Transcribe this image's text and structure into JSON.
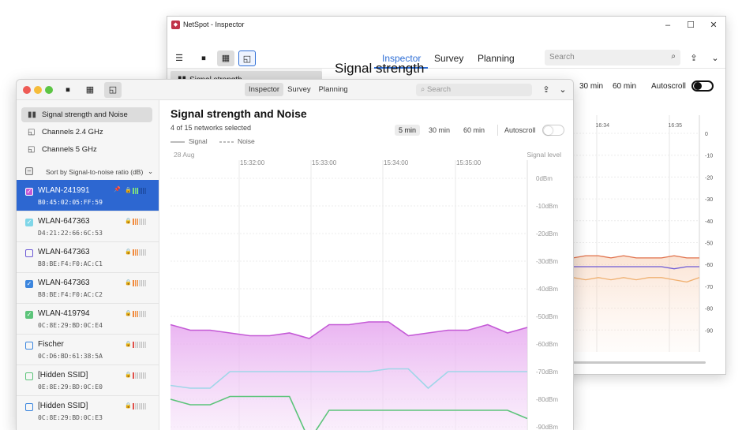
{
  "back_window": {
    "title": "NetSpot - Inspector",
    "window_controls": [
      "–",
      "☐",
      "✕"
    ],
    "tabs": [
      {
        "label": "Inspector",
        "active": true
      },
      {
        "label": "Survey",
        "active": false
      },
      {
        "label": "Planning",
        "active": false
      }
    ],
    "search_placeholder": "Search",
    "sidebar_item": "Signal strength",
    "heading": "Signal strength",
    "time_options": [
      "30 min",
      "60 min"
    ],
    "autoscroll_label": "Autoscroll",
    "autoscroll_on": false,
    "time_ticks": [
      "16:34",
      "16:35"
    ],
    "y_ticks": [
      "0",
      "-10",
      "-20",
      "-30",
      "-40",
      "-50",
      "-60",
      "-70",
      "-80",
      "-90"
    ]
  },
  "front_window": {
    "toolbar_tabs": [
      {
        "label": "Inspector",
        "active": true
      },
      {
        "label": "Survey",
        "active": false
      },
      {
        "label": "Planning",
        "active": false
      }
    ],
    "search_placeholder": "Search",
    "nav": [
      {
        "label": "Signal strength and Noise",
        "icon": "bar-chart-icon",
        "selected": true
      },
      {
        "label": "Channels 2.4 GHz",
        "icon": "channel-icon",
        "selected": false
      },
      {
        "label": "Channels 5 GHz",
        "icon": "channel-icon",
        "selected": false
      }
    ],
    "sort_label": "Sort by Signal-to-noise ratio (dB)",
    "networks": [
      {
        "ssid": "WLAN-241991",
        "mac": "B0:45:02:05:FF:59",
        "checked": true,
        "color": "#c45ad6",
        "active": true,
        "pinned": true
      },
      {
        "ssid": "WLAN-647363",
        "mac": "D4:21:22:66:6C:53",
        "checked": true,
        "color": "#7fd6e8",
        "active": false,
        "pinned": false
      },
      {
        "ssid": "WLAN-647363",
        "mac": "B8:BE:F4:F0:AC:C1",
        "checked": false,
        "color": "#6d5ad6",
        "active": false,
        "pinned": false
      },
      {
        "ssid": "WLAN-647363",
        "mac": "B8:BE:F4:F0:AC:C2",
        "checked": true,
        "color": "#3c86de",
        "active": false,
        "pinned": false
      },
      {
        "ssid": "WLAN-419794",
        "mac": "0C:8E:29:BD:0C:E4",
        "checked": true,
        "color": "#5cc47a",
        "active": false,
        "pinned": false
      },
      {
        "ssid": "Fischer",
        "mac": "0C:D6:BD:61:38:5A",
        "checked": false,
        "color": "#3c86de",
        "active": false,
        "pinned": false
      },
      {
        "ssid": "[Hidden SSID]",
        "mac": "0E:8E:29:BD:0C:E0",
        "checked": false,
        "color": "#5cc47a",
        "active": false,
        "pinned": false
      },
      {
        "ssid": "[Hidden SSID]",
        "mac": "0C:8E:29:BD:0C:E3",
        "checked": false,
        "color": "#3c86de",
        "active": false,
        "pinned": false
      }
    ],
    "main": {
      "title": "Signal strength and Noise",
      "subtitle": "4 of 15 networks selected",
      "legend_signal": "Signal",
      "legend_noise": "Noise",
      "time_options": [
        {
          "label": "5 min",
          "active": true
        },
        {
          "label": "30 min",
          "active": false
        },
        {
          "label": "60 min",
          "active": false
        }
      ],
      "autoscroll_label": "Autoscroll",
      "autoscroll_on": false
    }
  },
  "chart_data": {
    "type": "area",
    "date_label": "28 Aug",
    "x_ticks": [
      "15:32:00",
      "15:33:00",
      "15:34:00",
      "15:35:00"
    ],
    "ylabel": "Signal level",
    "y_ticks": [
      "0dBm",
      "-10dBm",
      "-20dBm",
      "-30dBm",
      "-40dBm",
      "-50dBm",
      "-60dBm",
      "-70dBm",
      "-80dBm",
      "-90dBm"
    ],
    "ylim": [
      -90,
      0
    ],
    "series": [
      {
        "color": "#c45ad6",
        "fill": true,
        "values": [
          -53,
          -55,
          -55,
          -56,
          -57,
          -57,
          -56,
          -58,
          -53,
          -53,
          -52,
          -52,
          -57,
          -56,
          -55,
          -55,
          -53,
          -56,
          -54
        ]
      },
      {
        "color": "#9fd6e8",
        "fill": false,
        "values": [
          -75,
          -76,
          -76,
          -70,
          -70,
          -70,
          -70,
          -70,
          -70,
          -70,
          -70,
          -69,
          -69,
          -76,
          -70,
          -70,
          -70,
          -70,
          -70
        ]
      },
      {
        "color": "#5cc47a",
        "fill": false,
        "values": [
          -80,
          -82,
          -82,
          -79,
          -79,
          -79,
          -79,
          -95,
          -84,
          -84,
          -84,
          -84,
          -84,
          -84,
          -84,
          -84,
          -84,
          -84,
          -87
        ]
      }
    ]
  },
  "back_chart_data": {
    "type": "line",
    "series": [
      {
        "color": "#e0704a",
        "values": [
          -57,
          -56,
          -56,
          -57,
          -56,
          -57,
          -57,
          -57,
          -56,
          -57,
          -57
        ]
      },
      {
        "color": "#6d5ad6",
        "values": [
          -61,
          -61,
          -61,
          -61,
          -61,
          -61,
          -61,
          -61,
          -62,
          -61,
          -61
        ]
      },
      {
        "color": "#f0b070",
        "values": [
          -66,
          -67,
          -66,
          -67,
          -66,
          -67,
          -66,
          -66,
          -67,
          -68,
          -66
        ]
      }
    ]
  }
}
